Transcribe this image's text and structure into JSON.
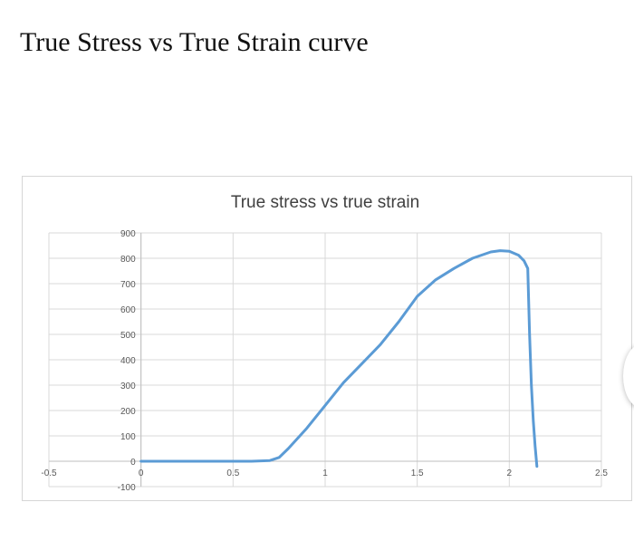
{
  "page": {
    "heading": "True Stress vs True Strain curve"
  },
  "chart_data": {
    "type": "line",
    "title": "True stress vs true strain",
    "xlabel": "",
    "ylabel": "",
    "xlim": [
      -0.5,
      2.5
    ],
    "ylim": [
      -100,
      900
    ],
    "x_ticks": [
      -0.5,
      0,
      0.5,
      1,
      1.5,
      2,
      2.5
    ],
    "x_tick_labels": [
      "-0.5",
      "0",
      "0.5",
      "1",
      "1.5",
      "2",
      "2.5"
    ],
    "y_ticks": [
      -100,
      0,
      100,
      200,
      300,
      400,
      500,
      600,
      700,
      800,
      900
    ],
    "y_tick_labels": [
      "-100",
      "0",
      "100",
      "200",
      "300",
      "400",
      "500",
      "600",
      "700",
      "800",
      "900"
    ],
    "grid": true,
    "legend": "none",
    "series": [
      {
        "color": "#5b9bd5",
        "x": [
          0.0,
          0.3,
          0.6,
          0.7,
          0.75,
          0.8,
          0.9,
          1.0,
          1.1,
          1.2,
          1.3,
          1.4,
          1.5,
          1.6,
          1.7,
          1.8,
          1.9,
          1.95,
          2.0,
          2.05,
          2.08,
          2.1,
          2.11,
          2.12,
          2.13,
          2.14,
          2.15
        ],
        "y": [
          0,
          0,
          0,
          3,
          15,
          50,
          130,
          220,
          310,
          385,
          460,
          550,
          650,
          715,
          760,
          800,
          825,
          830,
          828,
          812,
          790,
          760,
          500,
          300,
          160,
          60,
          -20
        ]
      }
    ]
  }
}
